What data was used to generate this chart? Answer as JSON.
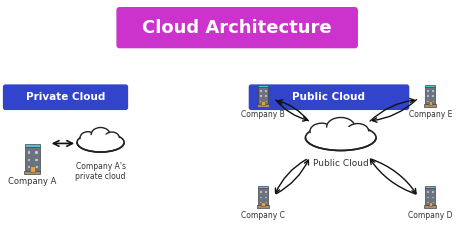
{
  "title": "Cloud Architecture",
  "title_bg": "#cc33cc",
  "title_color": "#ffffff",
  "title_fontsize": 13,
  "background_color": "#ffffff",
  "private_label": "Private Cloud",
  "public_label": "Public Cloud",
  "label_bg": "#3344cc",
  "label_color": "#ffffff",
  "company_a_label": "Company A",
  "private_cloud_label": "Company A's\nprivate cloud",
  "company_b_label": "Company B",
  "company_c_label": "Company C",
  "company_d_label": "Company D",
  "company_e_label": "Company E",
  "public_cloud_label": "Public Cloud",
  "arrow_color": "#111111",
  "building_color": "#6b7280",
  "roof_color": "#4fc3d8",
  "door_color": "#e8a040",
  "window_color": "#cdd9e0",
  "base_color": "#a8916b"
}
